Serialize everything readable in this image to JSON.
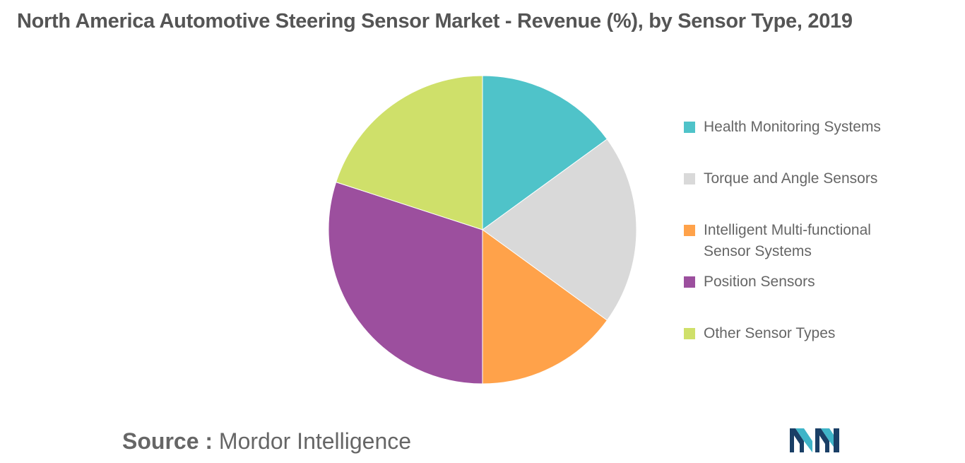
{
  "chart_data": {
    "type": "pie",
    "title": "North America Automotive Steering Sensor Market - Revenue (%), by Sensor Type, 2019",
    "categories": [
      "Health Monitoring Systems",
      "Torque and Angle Sensors",
      "Intelligent Multi-functional Sensor Systems",
      "Position Sensors",
      "Other Sensor Types"
    ],
    "values": [
      15,
      20,
      15,
      30,
      20
    ],
    "colors": [
      "#4fc3c9",
      "#d9d9d9",
      "#ffa24a",
      "#9c4f9e",
      "#cfe06a"
    ],
    "legend_position": "right",
    "unit": "%"
  },
  "source": {
    "label": "Source :",
    "value": "Mordor Intelligence"
  },
  "logo": {
    "icon": "mordor-intelligence-logo",
    "colors": [
      "#1a3f66",
      "#3fb4c8"
    ]
  }
}
